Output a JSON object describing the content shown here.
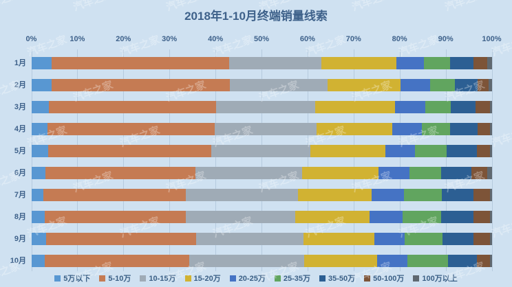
{
  "title": "2018年1-10月终端销量线索",
  "watermark": {
    "text": "汽车之家"
  },
  "chart_data": {
    "type": "bar",
    "stacked": true,
    "orientation": "horizontal",
    "unit": "percent",
    "title": "2018年1-10月终端销量线索",
    "categories": [
      "1月",
      "2月",
      "3月",
      "4月",
      "5月",
      "6月",
      "7月",
      "8月",
      "9月",
      "10月"
    ],
    "x_ticks": [
      "0%",
      "10%",
      "20%",
      "30%",
      "40%",
      "50%",
      "60%",
      "70%",
      "80%",
      "90%",
      "100%"
    ],
    "xlim": [
      0,
      100
    ],
    "grid": true,
    "legend_position": "bottom",
    "series": [
      {
        "name": "5万以下",
        "color": "#5897d2",
        "values": [
          4.3,
          4.3,
          3.8,
          3.4,
          3.6,
          3.0,
          2.5,
          2.8,
          3.2,
          2.9
        ]
      },
      {
        "name": "5-10万",
        "color": "#c57b53",
        "values": [
          38.6,
          38.8,
          36.2,
          36.3,
          35.4,
          32.6,
          31.0,
          30.7,
          32.5,
          31.3
        ]
      },
      {
        "name": "10-15万",
        "color": "#9fabb6",
        "values": [
          20.1,
          21.2,
          21.6,
          22.2,
          21.6,
          23.1,
          24.4,
          23.7,
          23.4,
          25.0
        ]
      },
      {
        "name": "15-20万",
        "color": "#d1b232",
        "values": [
          16.2,
          15.8,
          17.3,
          16.5,
          16.2,
          16.6,
          16.0,
          16.2,
          15.3,
          15.9
        ]
      },
      {
        "name": "20-25万",
        "color": "#4573c4",
        "values": [
          6.0,
          6.4,
          6.6,
          6.4,
          6.4,
          6.7,
          6.9,
          7.1,
          6.6,
          6.5
        ]
      },
      {
        "name": "25-35万",
        "color": "#61a55f",
        "values": [
          5.7,
          5.5,
          5.6,
          6.1,
          7.0,
          6.9,
          8.3,
          8.5,
          8.3,
          8.8
        ]
      },
      {
        "name": "35-50万",
        "color": "#2c5f93",
        "values": [
          5.0,
          4.9,
          5.3,
          6.0,
          6.5,
          6.6,
          6.8,
          7.0,
          6.7,
          6.3
        ]
      },
      {
        "name": "50-100万",
        "color": "#7d5438",
        "values": [
          3.1,
          2.4,
          3.1,
          2.6,
          2.8,
          3.5,
          3.6,
          3.6,
          3.5,
          2.9
        ]
      },
      {
        "name": "100万以上",
        "color": "#5f6870",
        "values": [
          1.0,
          0.7,
          0.5,
          0.5,
          0.5,
          1.0,
          0.5,
          0.4,
          0.5,
          0.4
        ]
      }
    ]
  }
}
